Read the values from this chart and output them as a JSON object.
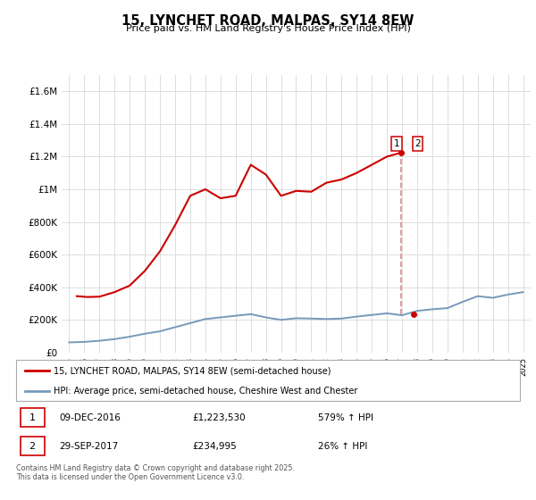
{
  "title": "15, LYNCHET ROAD, MALPAS, SY14 8EW",
  "subtitle": "Price paid vs. HM Land Registry's House Price Index (HPI)",
  "legend_line1": "15, LYNCHET ROAD, MALPAS, SY14 8EW (semi-detached house)",
  "legend_line2": "HPI: Average price, semi-detached house, Cheshire West and Chester",
  "footnote": "Contains HM Land Registry data © Crown copyright and database right 2025.\nThis data is licensed under the Open Government Licence v3.0.",
  "transaction1_date": "09-DEC-2016",
  "transaction1_price": "£1,223,530",
  "transaction1_hpi": "579% ↑ HPI",
  "transaction2_date": "29-SEP-2017",
  "transaction2_price": "£234,995",
  "transaction2_hpi": "26% ↑ HPI",
  "red_color": "#cc0000",
  "blue_color": "#7799bb",
  "dashed_color": "#dd8888",
  "bg_color": "#ffffff",
  "grid_color": "#dddddd",
  "ylim_max": 1700000,
  "ylim_min": 0,
  "hpi_series": {
    "years": [
      1995,
      1996,
      1997,
      1998,
      1999,
      2000,
      2001,
      2002,
      2003,
      2004,
      2005,
      2006,
      2007,
      2008,
      2009,
      2010,
      2011,
      2012,
      2013,
      2014,
      2015,
      2016,
      2017,
      2018,
      2019,
      2020,
      2021,
      2022,
      2023,
      2024,
      2025
    ],
    "values": [
      62000,
      65000,
      72000,
      82000,
      97000,
      115000,
      130000,
      155000,
      180000,
      205000,
      215000,
      225000,
      235000,
      215000,
      200000,
      210000,
      208000,
      205000,
      208000,
      220000,
      230000,
      240000,
      228000,
      255000,
      265000,
      272000,
      310000,
      345000,
      335000,
      355000,
      370000
    ]
  },
  "price_series": {
    "dates": [
      1995.5,
      1996.2,
      1997.0,
      1998.0,
      1999.0,
      2000.0,
      2001.0,
      2002.0,
      2003.0,
      2004.0,
      2005.0,
      2006.0,
      2007.0,
      2008.0,
      2009.0,
      2010.0,
      2011.0,
      2012.0,
      2013.0,
      2014.0,
      2015.0,
      2016.0,
      2016.92
    ],
    "values": [
      345000,
      340000,
      342000,
      370000,
      410000,
      500000,
      620000,
      780000,
      960000,
      1000000,
      945000,
      960000,
      1150000,
      1090000,
      960000,
      990000,
      985000,
      1040000,
      1060000,
      1100000,
      1150000,
      1200000,
      1223530
    ]
  },
  "transaction1_x": 2016.92,
  "transaction1_y": 1223530,
  "transaction2_x": 2017.75,
  "transaction2_y": 234995,
  "xlim_min": 1994.5,
  "xlim_max": 2025.5,
  "xticks": [
    1995,
    1996,
    1997,
    1998,
    1999,
    2000,
    2001,
    2002,
    2003,
    2004,
    2005,
    2006,
    2007,
    2008,
    2009,
    2010,
    2011,
    2012,
    2013,
    2014,
    2015,
    2016,
    2017,
    2018,
    2019,
    2020,
    2021,
    2022,
    2023,
    2024,
    2025
  ],
  "yticks": [
    0,
    200000,
    400000,
    600000,
    800000,
    1000000,
    1200000,
    1400000,
    1600000
  ]
}
